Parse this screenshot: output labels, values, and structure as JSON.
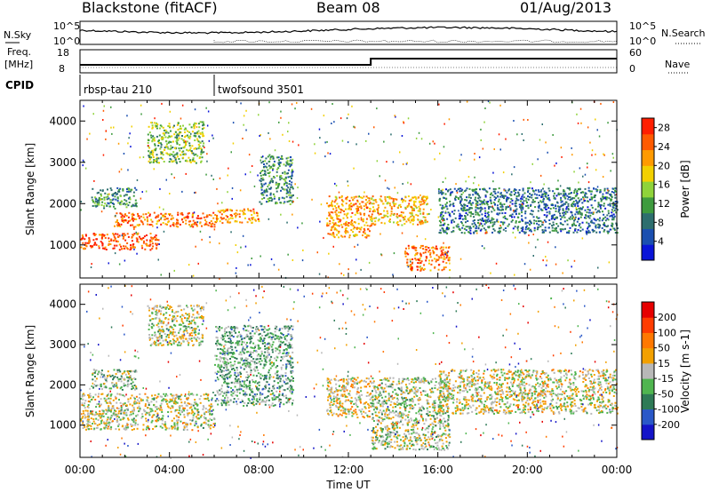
{
  "header": {
    "title": "Blackstone (fitACF)",
    "beam": "Beam 08",
    "date": "01/Aug/2013"
  },
  "summary": {
    "nsky_label": "N.Sky",
    "nsearch_label": "N.Search",
    "freq_label_1": "Freq.",
    "freq_label_2": "[MHz]",
    "nave_label": "Nave",
    "cpid_label": "CPID",
    "noise_ticks": [
      "10^5",
      "10^0"
    ],
    "noise_right_ticks": [
      "10^5",
      "10^0"
    ],
    "freq_ticks": [
      "18",
      "8"
    ],
    "nave_ticks": [
      "60",
      "0"
    ],
    "cpid_segments": [
      {
        "start_hour": 0,
        "end_hour": 6,
        "label": "rbsp-tau 210"
      },
      {
        "start_hour": 6,
        "end_hour": 24,
        "label": "twofsound 3501"
      }
    ]
  },
  "colors": {
    "power_scale": [
      "#0a14d8",
      "#1b4fb0",
      "#2d6e6e",
      "#3e9b3e",
      "#8fd33a",
      "#f2d000",
      "#ff9a00",
      "#ff5a00",
      "#ff1e00"
    ],
    "velocity_scale": [
      "#1414c8",
      "#2a58c8",
      "#2e7a56",
      "#4fb54f",
      "#b8b8b8",
      "#f2a000",
      "#ff7800",
      "#ff3c00",
      "#e60000"
    ],
    "frame": "#000000"
  },
  "chart_data": [
    {
      "type": "heatmap",
      "panel": "power",
      "xlabel": "",
      "ylabel": "Slant Range [km]",
      "ylim": [
        200,
        4500
      ],
      "xlim": [
        0,
        24
      ],
      "y_ticks": [
        "1000",
        "2000",
        "3000",
        "4000"
      ],
      "colorbar": {
        "label": "Power [dB]",
        "ticks": [
          "4",
          "8",
          "12",
          "16",
          "20",
          "24",
          "28"
        ],
        "range": [
          0,
          30
        ]
      },
      "echo_regions": [
        {
          "t0": 0.0,
          "t1": 3.5,
          "r0": 900,
          "r1": 1300,
          "value": 26
        },
        {
          "t0": 1.5,
          "t1": 6.0,
          "r0": 1450,
          "r1": 1800,
          "value": 24
        },
        {
          "t0": 6.0,
          "t1": 8.0,
          "r0": 1550,
          "r1": 1900,
          "value": 22
        },
        {
          "t0": 0.5,
          "t1": 2.5,
          "r0": 1900,
          "r1": 2400,
          "value": 10
        },
        {
          "t0": 3.0,
          "t1": 5.5,
          "r0": 3000,
          "r1": 4000,
          "value": 14
        },
        {
          "t0": 8.0,
          "t1": 9.5,
          "r0": 2000,
          "r1": 3200,
          "value": 10
        },
        {
          "t0": 11.0,
          "t1": 13.0,
          "r0": 1200,
          "r1": 2200,
          "value": 22
        },
        {
          "t0": 13.0,
          "t1": 15.5,
          "r0": 1500,
          "r1": 2200,
          "value": 20
        },
        {
          "t0": 14.5,
          "t1": 16.5,
          "r0": 400,
          "r1": 1000,
          "value": 24
        },
        {
          "t0": 16.0,
          "t1": 24.0,
          "r0": 1300,
          "r1": 2400,
          "value": 8
        }
      ]
    },
    {
      "type": "heatmap",
      "panel": "velocity",
      "xlabel": "Time UT",
      "ylabel": "Slant Range [km]",
      "ylim": [
        200,
        4500
      ],
      "xlim": [
        0,
        24
      ],
      "x_ticks": [
        "00:00",
        "04:00",
        "08:00",
        "12:00",
        "16:00",
        "20:00",
        "00:00"
      ],
      "y_ticks": [
        "1000",
        "2000",
        "3000",
        "4000"
      ],
      "colorbar": {
        "label": "Velocity [m s-1]",
        "ticks": [
          "200",
          "100",
          "50",
          "15",
          "-15",
          "-50",
          "-100",
          "-200"
        ],
        "range": [
          -250,
          250
        ]
      },
      "echo_regions": [
        {
          "t0": 0.0,
          "t1": 6.0,
          "r0": 900,
          "r1": 1800,
          "value": 0
        },
        {
          "t0": 0.5,
          "t1": 2.5,
          "r0": 1900,
          "r1": 2400,
          "value": -40
        },
        {
          "t0": 3.0,
          "t1": 5.5,
          "r0": 3000,
          "r1": 4000,
          "value": 0
        },
        {
          "t0": 6.0,
          "t1": 9.5,
          "r0": 1500,
          "r1": 3500,
          "value": -60
        },
        {
          "t0": 11.0,
          "t1": 13.0,
          "r0": 1200,
          "r1": 2200,
          "value": 30
        },
        {
          "t0": 13.0,
          "t1": 16.5,
          "r0": 400,
          "r1": 2200,
          "value": -20
        },
        {
          "t0": 16.0,
          "t1": 24.0,
          "r0": 1300,
          "r1": 2400,
          "value": 10
        }
      ]
    }
  ]
}
